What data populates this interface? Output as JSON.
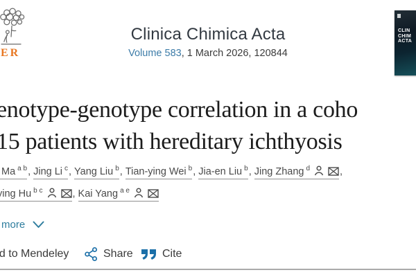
{
  "header": {
    "publisher_wordmark": "ER",
    "journal_title": "Clinica Chimica Acta",
    "volume_link": "Volume 583",
    "issue_suffix": ", 1 March 2026, 120844",
    "cover": {
      "lines": [
        "CLIN",
        "CHIM",
        "ACTA"
      ]
    }
  },
  "article": {
    "title_line1": "enotype-genotype correlation in a coho",
    "title_line2": "15 patients with hereditary ichthyosis",
    "authors_line1": [
      {
        "name": "Ma",
        "sup": "a b",
        "person": false,
        "envelope": false
      },
      {
        "name": "Jing Li",
        "sup": "c",
        "person": false,
        "envelope": false
      },
      {
        "name": "Yang Liu",
        "sup": "b",
        "person": false,
        "envelope": false
      },
      {
        "name": "Tian-ying Wei",
        "sup": "b",
        "person": false,
        "envelope": false
      },
      {
        "name": "Jia-en Liu",
        "sup": "b",
        "person": false,
        "envelope": false
      },
      {
        "name": "Jing Zhang",
        "sup": "d",
        "person": true,
        "envelope": true
      }
    ],
    "authors_line1_suffix": ",",
    "authors_line2": [
      {
        "name": "ying Hu",
        "sup": "b c",
        "person": true,
        "envelope": true
      },
      {
        "name": "Kai Yang",
        "sup": "a e",
        "person": true,
        "envelope": true
      }
    ],
    "show_more_label": "more"
  },
  "actions": {
    "mendeley_label": "dd to Mendeley",
    "share_label": "Share",
    "cite_label": "Cite"
  },
  "colors": {
    "elsevier_orange": "#e87722",
    "link_blue": "#3d7ca8",
    "accent_blue": "#1b6fa8",
    "teal_link": "#2e7d9e",
    "title_text": "#1c1c1c",
    "body_text": "#4a4a4a"
  }
}
